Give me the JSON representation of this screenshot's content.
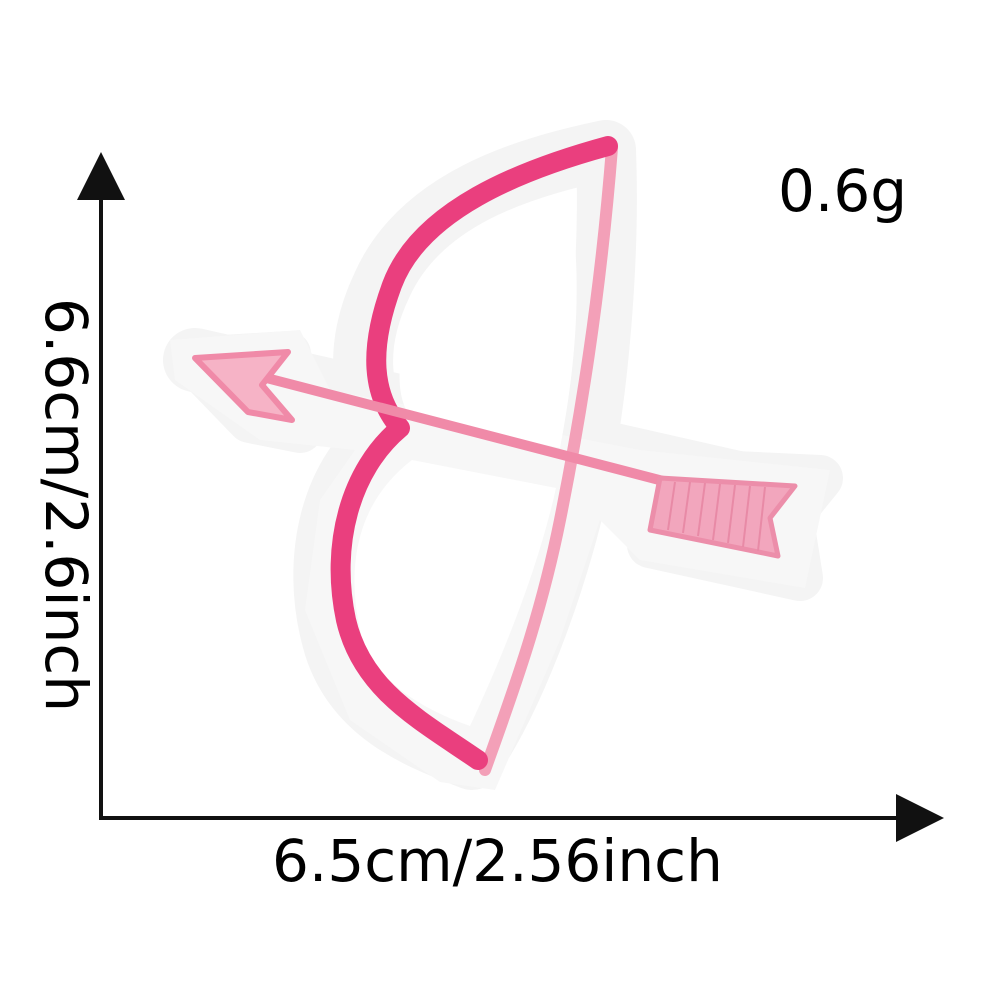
{
  "dimensions": {
    "weight": "0.6g",
    "width": "6.5cm/2.56inch",
    "height": "6.6cm/2.6inch"
  },
  "product": {
    "icon": "bow-and-arrow-patch-icon",
    "colors": {
      "bow": "#ea3f7e",
      "string_and_arrow": "#f3a0b8",
      "fletching": "#f2a6bd",
      "felt_border": "#f6f6f6",
      "axes": "#111111"
    }
  }
}
